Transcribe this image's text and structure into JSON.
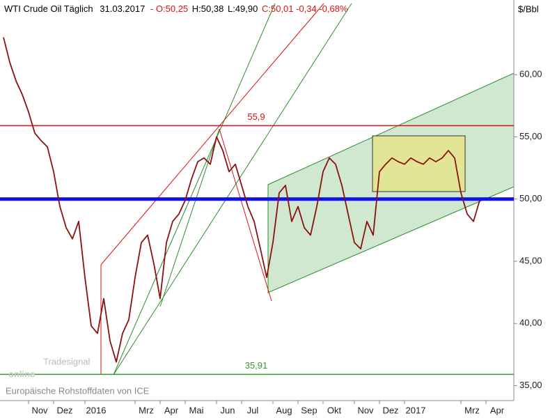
{
  "chart_data": {
    "type": "line",
    "header": {
      "instrument": "WTI Crude Oil Täglich",
      "date": "31.03.2017",
      "open": "- O:50,25",
      "high": "H:50,38",
      "low": "L:49,90",
      "close": "C:50,01 -0,34 -0,68%"
    },
    "y_axis_label": "$/Bbl",
    "categories": [
      null,
      null,
      null,
      null,
      "Nov",
      null,
      null,
      null,
      "Dez",
      null,
      null,
      null,
      null,
      "2016",
      null,
      null,
      null,
      null,
      null,
      null,
      null,
      "Mrz",
      null,
      null,
      null,
      "Apr",
      null,
      null,
      null,
      "Mai",
      null,
      null,
      null,
      null,
      "Jun",
      null,
      null,
      null,
      "Jul",
      null,
      null,
      null,
      null,
      "Aug",
      null,
      null,
      null,
      "Sep",
      null,
      null,
      null,
      "Okt",
      null,
      null,
      null,
      null,
      "Nov",
      null,
      null,
      null,
      "Dez",
      null,
      null,
      null,
      "2017",
      null,
      null,
      null,
      null,
      null,
      null,
      null,
      null,
      "Mrz",
      null,
      null,
      null,
      "Apr"
    ],
    "series": [
      {
        "name": "WTI Crude Oil",
        "color": "#8b1010",
        "values": [
          63.0,
          61.0,
          59.5,
          58.4,
          57.0,
          55.3,
          54.7,
          54.2,
          52.2,
          49.4,
          47.7,
          46.8,
          48.2,
          43.7,
          39.8,
          39.2,
          42.0,
          38.6,
          36.9,
          39.2,
          40.3,
          43.7,
          46.5,
          47.1,
          44.8,
          42.0,
          46.5,
          48.2,
          48.8,
          49.9,
          51.6,
          53.0,
          53.3,
          52.8,
          55.0,
          53.9,
          52.2,
          52.8,
          51.1,
          49.4,
          48.2,
          46.0,
          43.7,
          46.5,
          50.5,
          51.1,
          48.2,
          49.4,
          47.7,
          47.1,
          49.4,
          52.2,
          53.3,
          52.8,
          51.1,
          48.8,
          46.5,
          46.0,
          48.2,
          47.1,
          52.2,
          52.8,
          53.3,
          53.0,
          52.8,
          53.3,
          53.0,
          52.8,
          53.3,
          53.0,
          53.3,
          53.9,
          53.3,
          50.5,
          48.8,
          48.2,
          49.9,
          null
        ]
      }
    ],
    "ylim": [
      33.8,
      66.0
    ],
    "yticks": [
      {
        "value": 35,
        "label": "35,00"
      },
      {
        "value": 40,
        "label": "40,00"
      },
      {
        "value": 45,
        "label": "45,00"
      },
      {
        "value": 50,
        "label": "50,00"
      },
      {
        "value": 55,
        "label": "55,00"
      },
      {
        "value": 60,
        "label": "60,00"
      }
    ],
    "hlines": [
      {
        "value": 55.9,
        "label": "55,9",
        "color": "#dd1111"
      },
      {
        "value": 50,
        "color": "#1111ee"
      },
      {
        "value": 35.91,
        "label": "35,91",
        "color": "#339933"
      }
    ],
    "watermark": {
      "logo": "online",
      "brand": "Tradesignal",
      "source": "Europäische Rohstoffdaten von ICE"
    }
  }
}
